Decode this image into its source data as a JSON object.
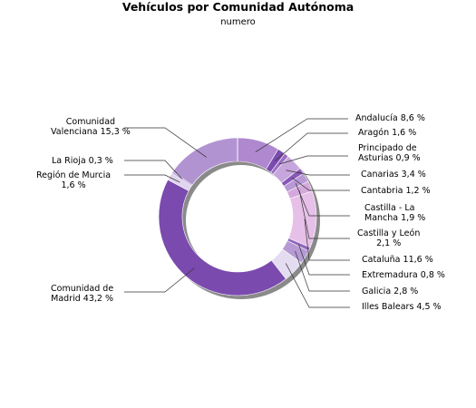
{
  "chart_data": {
    "type": "pie",
    "title": "Vehículos por Comunidad Autónoma",
    "subtitle": "numero",
    "style": "donut",
    "slices": [
      {
        "name": "Andalucía",
        "value": 8.6,
        "label": "Andalucía 8,6 %",
        "color": "#b088cf"
      },
      {
        "name": "Aragón",
        "value": 1.6,
        "label": "Aragón 1,6 %",
        "color": "#7b4cb0"
      },
      {
        "name": "Principado de Asturias",
        "value": 0.9,
        "label": "Principado de\nAsturias 0,9 %",
        "color": "#9a6cc4"
      },
      {
        "name": "Canarias",
        "value": 3.4,
        "label": "Canarias 3,4 %",
        "color": "#c6a6dc"
      },
      {
        "name": "Cantabria",
        "value": 1.2,
        "label": "Cantabria 1,2 %",
        "color": "#8858b8"
      },
      {
        "name": "Castilla - La Mancha",
        "value": 1.9,
        "label": "Castilla - La\nMancha 1,9 %",
        "color": "#b998d6"
      },
      {
        "name": "Castilla y León",
        "value": 2.1,
        "label": "Castilla y León\n2,1 %",
        "color": "#d4a8dc"
      },
      {
        "name": "Cataluña",
        "value": 11.6,
        "label": "Cataluña 11,6 %",
        "color": "#e6c0e8"
      },
      {
        "name": "Extremadura",
        "value": 0.8,
        "label": "Extremadura 0,8 %",
        "color": "#9068bd"
      },
      {
        "name": "Galicia",
        "value": 2.8,
        "label": "Galicia 2,8 %",
        "color": "#b59ad4"
      },
      {
        "name": "Illes Balears",
        "value": 4.5,
        "label": "Illes Balears 4,5 %",
        "color": "#e4dcf0"
      },
      {
        "name": "Comunidad de Madrid",
        "value": 43.2,
        "label": "Comunidad de\nMadrid 43,2 %",
        "color": "#7a4aae"
      },
      {
        "name": "Región de Murcia",
        "value": 1.6,
        "label": "Región de Murcia\n1,6 %",
        "color": "#e0d4ee"
      },
      {
        "name": "La Rioja",
        "value": 0.3,
        "label": "La Rioja 0,3 %",
        "color": "#a384c8"
      },
      {
        "name": "Comunidad Valenciana",
        "value": 15.3,
        "label": "Comunidad\nValenciana 15,3 %",
        "color": "#b293d2"
      }
    ]
  }
}
